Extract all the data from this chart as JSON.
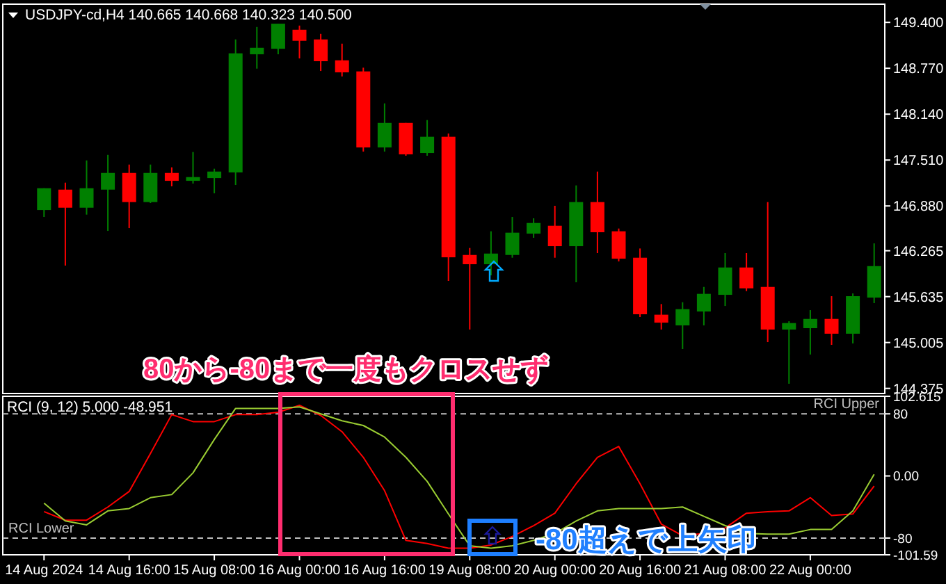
{
  "chart_data": [
    {
      "type": "candlestick",
      "title": "USDJPY-cd,H4  140.665 140.668 140.323 140.500",
      "categories": [
        null,
        null,
        null,
        null,
        null,
        null,
        null,
        null,
        null,
        null,
        null,
        null,
        null,
        null,
        null,
        null,
        null,
        null,
        null,
        null,
        null,
        null,
        null,
        null,
        null,
        null,
        null,
        null,
        null,
        null,
        null,
        null,
        null,
        null,
        null,
        null,
        null,
        null,
        null,
        null
      ],
      "ohlc": [
        [
          146.824,
          147.123,
          146.729,
          147.123
        ],
        [
          147.104,
          147.2,
          146.061,
          146.856
        ],
        [
          146.856,
          147.505,
          146.761,
          147.123
        ],
        [
          147.104,
          147.581,
          146.538,
          147.333
        ],
        [
          147.333,
          147.448,
          146.576,
          146.933
        ],
        [
          146.933,
          147.448,
          146.92,
          147.333
        ],
        [
          147.333,
          147.41,
          147.149,
          147.225
        ],
        [
          147.225,
          147.62,
          147.187,
          147.276
        ],
        [
          147.263,
          147.391,
          147.053,
          147.352
        ],
        [
          147.34,
          149.166,
          147.168,
          148.975
        ],
        [
          148.962,
          149.337,
          148.765,
          149.051
        ],
        [
          149.038,
          149.382,
          148.962,
          149.382
        ],
        [
          149.299,
          149.356,
          148.905,
          149.147
        ],
        [
          149.166,
          149.242,
          148.733,
          148.867
        ],
        [
          148.879,
          149.108,
          148.657,
          148.714
        ],
        [
          148.727,
          148.778,
          147.626,
          147.683
        ],
        [
          147.683,
          148.288,
          147.626,
          148.02
        ],
        [
          148.02,
          148.02,
          147.569,
          147.588
        ],
        [
          147.607,
          148.059,
          147.569,
          147.83
        ],
        [
          147.83,
          147.874,
          145.851,
          146.175
        ],
        [
          146.207,
          146.303,
          145.183,
          146.08
        ],
        [
          146.08,
          146.532,
          145.927,
          146.226
        ],
        [
          146.207,
          146.729,
          146.169,
          146.513
        ],
        [
          146.5,
          146.71,
          146.443,
          146.646
        ],
        [
          146.608,
          146.882,
          146.169,
          146.328
        ],
        [
          146.328,
          147.162,
          145.832,
          146.933
        ],
        [
          146.933,
          147.352,
          146.233,
          146.519
        ],
        [
          146.532,
          146.57,
          146.118,
          146.156
        ],
        [
          146.169,
          146.296,
          145.355,
          145.393
        ],
        [
          145.387,
          145.533,
          145.183,
          145.278
        ],
        [
          145.24,
          145.558,
          144.916,
          145.463
        ],
        [
          145.431,
          145.768,
          145.24,
          145.673
        ],
        [
          145.66,
          146.233,
          145.507,
          146.035
        ],
        [
          146.035,
          146.233,
          145.711,
          145.749
        ],
        [
          145.768,
          146.933,
          145.011,
          145.183
        ],
        [
          145.183,
          145.297,
          144.439,
          145.272
        ],
        [
          145.202,
          145.45,
          144.84,
          145.329
        ],
        [
          145.329,
          145.641,
          144.973,
          145.126
        ],
        [
          145.126,
          145.679,
          144.992,
          145.641
        ],
        [
          145.622,
          146.366,
          145.546,
          146.054
        ]
      ],
      "colors": [
        "#008000",
        "#ff0000",
        "#008000",
        "#008000",
        "#ff0000",
        "#008000",
        "#ff0000",
        "#008000",
        "#008000",
        "#008000",
        "#008000",
        "#008000",
        "#ff0000",
        "#ff0000",
        "#ff0000",
        "#ff0000",
        "#008000",
        "#ff0000",
        "#008000",
        "#ff0000",
        "#ff0000",
        "#008000",
        "#008000",
        "#008000",
        "#ff0000",
        "#008000",
        "#ff0000",
        "#ff0000",
        "#ff0000",
        "#ff0000",
        "#008000",
        "#008000",
        "#008000",
        "#ff0000",
        "#ff0000",
        "#008000",
        "#008000",
        "#ff0000",
        "#008000",
        "#008000"
      ],
      "ylim": [
        144.305,
        149.65
      ],
      "yticks": [
        {
          "value": 149.4,
          "label": "149.400"
        },
        {
          "value": 148.77,
          "label": "148.770"
        },
        {
          "value": 148.14,
          "label": "148.140"
        },
        {
          "value": 147.51,
          "label": "147.510"
        },
        {
          "value": 146.88,
          "label": "146.880"
        },
        {
          "value": 146.265,
          "label": "146.265"
        },
        {
          "value": 145.635,
          "label": "145.635"
        },
        {
          "value": 145.005,
          "label": "145.005"
        },
        {
          "value": 144.375,
          "label": "144.375"
        }
      ],
      "tick_labels": "y",
      "annotations": [
        "80から-80まで一度もクロスせず"
      ]
    },
    {
      "type": "line",
      "title": "RCI (9, 12) 5.000 -48.951",
      "categories": [
        "14 Aug 2024",
        null,
        null,
        null,
        "14 Aug 16:00",
        null,
        null,
        null,
        "15 Aug 08:00",
        null,
        null,
        null,
        "16 Aug 00:00",
        null,
        null,
        null,
        "16 Aug 16:00",
        null,
        null,
        null,
        "19 Aug 08:00",
        null,
        null,
        null,
        "20 Aug 00:00",
        null,
        null,
        null,
        "20 Aug 16:00",
        null,
        null,
        null,
        "21 Aug 08:00",
        null,
        null,
        null,
        "22 Aug 00:00",
        null,
        null,
        null
      ],
      "series": [
        {
          "color": "#ff0000",
          "values": [
            -46,
            -57,
            -57,
            -40,
            -20,
            29,
            79,
            70,
            70,
            79,
            79,
            82,
            91,
            78,
            57,
            24,
            -19,
            -83,
            -87,
            -93,
            -93,
            -89,
            -78,
            -64,
            -48,
            -10,
            24,
            38,
            -10,
            -62,
            -77,
            -74,
            -67,
            -48,
            -46,
            -45,
            -28,
            -51,
            -49,
            -13
          ]
        },
        {
          "color": "#9acd32",
          "values": [
            -35,
            -58,
            -63,
            -45,
            -42,
            -28,
            -24,
            4,
            47,
            87,
            87,
            87,
            89,
            80,
            71,
            65,
            50,
            24,
            -7,
            -49,
            -90,
            -93,
            -90,
            -83,
            -74,
            -58,
            -45,
            -42,
            -42,
            -42,
            -40,
            -52,
            -64,
            -74,
            -75,
            -75,
            -69,
            -69,
            -45,
            2
          ]
        }
      ],
      "ylim": [
        -101.59,
        102.615
      ],
      "yticks": [
        {
          "value": 102.615,
          "label": "102.615"
        },
        80,
        {
          "value": 0,
          "label": "0.00"
        },
        -80,
        {
          "value": -101.59,
          "label": "-101.59"
        }
      ],
      "ref_lines": [
        {
          "axis": "y",
          "value": 80,
          "label": "RCI Upper",
          "color": "#c0c0c0",
          "line_style": "dashed"
        },
        {
          "axis": "y",
          "value": -80,
          "label": "RCI Lower",
          "color": "#c0c0c0",
          "line_style": "dashed"
        }
      ],
      "annotations": [
        "-80超えで上矢印"
      ]
    }
  ]
}
